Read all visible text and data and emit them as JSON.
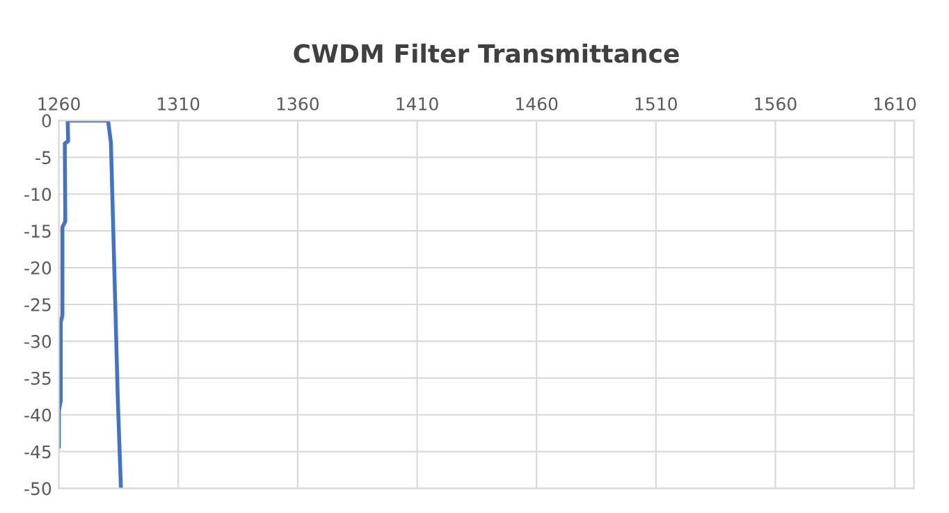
{
  "chart_data": {
    "type": "line",
    "title": "CWDM Filter Transmittance",
    "series": [
      {
        "color": "#4472c4",
        "x": [
          1260,
          1260,
          1260.8,
          1260.8,
          1261.5,
          1261.5,
          1262.7,
          1262.5,
          1263.9,
          1263.7,
          1280.6,
          1281.8,
          1284.7,
          1286
        ],
        "values": [
          -44.4,
          -39.4,
          -38.1,
          -27.4,
          -26.5,
          -14.5,
          -13.7,
          -3.1,
          -2.8,
          0,
          0,
          -3.0,
          -38,
          -50
        ]
      }
    ],
    "xlim": [
      1260,
      1618
    ],
    "xticks": [
      1260,
      1310,
      1360,
      1410,
      1460,
      1510,
      1560,
      1610
    ],
    "ylim": [
      -50,
      0
    ],
    "yticks": [
      0,
      -5,
      -10,
      -15,
      -20,
      -25,
      -30,
      -35,
      -40,
      -45,
      -50
    ],
    "grid": true,
    "legend": false,
    "marker": "none",
    "line_style": "solid"
  }
}
